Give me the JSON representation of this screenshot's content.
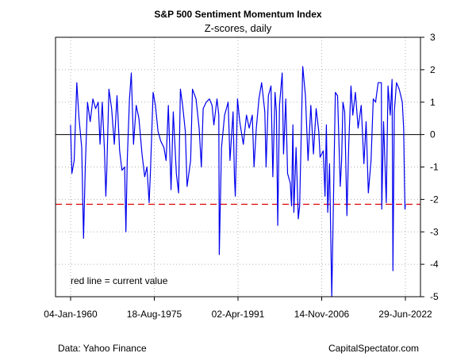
{
  "chart_data": {
    "type": "line",
    "title": "S&P 500 Sentiment Momentum Index",
    "subtitle": "Z-scores, daily",
    "annotation": "red line = current value",
    "xlabel": "",
    "ylabel": "",
    "ylim": [
      -5,
      3
    ],
    "y_ticks": [
      3,
      2,
      1,
      0,
      -1,
      -2,
      -3,
      -4,
      -5
    ],
    "y_axis_side": "right",
    "x_range": [
      "1960-01-04",
      "2022-06-29"
    ],
    "x_ticks": [
      {
        "date": "1960-01-04",
        "label": "04-Jan-1960"
      },
      {
        "date": "1975-08-18",
        "label": "18-Aug-1975"
      },
      {
        "date": "1991-04-02",
        "label": "02-Apr-1991"
      },
      {
        "date": "2006-11-14",
        "label": "14-Nov-2006"
      },
      {
        "date": "2022-06-29",
        "label": "29-Jun-2022"
      }
    ],
    "grid": true,
    "zero_line": true,
    "current_value_line": -2.15,
    "series": [
      {
        "color": "#0000ee",
        "points": [
          [
            "1960-01",
            0.3
          ],
          [
            "1960-04",
            -1.2
          ],
          [
            "1960-09",
            -0.8
          ],
          [
            "1961-03",
            1.6
          ],
          [
            "1961-08",
            0.5
          ],
          [
            "1962-02",
            -0.4
          ],
          [
            "1962-06",
            -3.2
          ],
          [
            "1962-10",
            -1.0
          ],
          [
            "1963-03",
            1.0
          ],
          [
            "1963-09",
            0.4
          ],
          [
            "1964-03",
            1.1
          ],
          [
            "1964-09",
            0.8
          ],
          [
            "1965-03",
            1.0
          ],
          [
            "1965-07",
            -0.3
          ],
          [
            "1965-12",
            1.0
          ],
          [
            "1966-05",
            -0.5
          ],
          [
            "1966-08",
            -1.9
          ],
          [
            "1966-10",
            -1.2
          ],
          [
            "1967-03",
            1.4
          ],
          [
            "1967-09",
            0.8
          ],
          [
            "1968-03",
            -0.3
          ],
          [
            "1968-09",
            1.2
          ],
          [
            "1969-03",
            -0.5
          ],
          [
            "1969-08",
            -1.1
          ],
          [
            "1970-02",
            -1.0
          ],
          [
            "1970-05",
            -3.0
          ],
          [
            "1970-08",
            -0.8
          ],
          [
            "1971-01",
            1.1
          ],
          [
            "1971-05",
            1.9
          ],
          [
            "1971-10",
            -0.3
          ],
          [
            "1972-04",
            0.9
          ],
          [
            "1972-10",
            0.5
          ],
          [
            "1973-05",
            -0.6
          ],
          [
            "1973-11",
            -1.3
          ],
          [
            "1974-04",
            -1.0
          ],
          [
            "1974-09",
            -2.1
          ],
          [
            "1974-12",
            -1.1
          ],
          [
            "1975-06",
            1.3
          ],
          [
            "1975-11",
            0.9
          ],
          [
            "1976-05",
            0.1
          ],
          [
            "1976-11",
            -0.2
          ],
          [
            "1977-06",
            -0.4
          ],
          [
            "1977-11",
            -0.8
          ],
          [
            "1978-04",
            0.9
          ],
          [
            "1978-10",
            -1.7
          ],
          [
            "1979-03",
            0.7
          ],
          [
            "1979-10",
            -1.2
          ],
          [
            "1980-03",
            -1.8
          ],
          [
            "1980-07",
            1.4
          ],
          [
            "1980-12",
            0.9
          ],
          [
            "1981-06",
            0.1
          ],
          [
            "1981-10",
            -1.6
          ],
          [
            "1982-06",
            -0.8
          ],
          [
            "1982-10",
            1.4
          ],
          [
            "1983-06",
            1.1
          ],
          [
            "1984-01",
            0.2
          ],
          [
            "1984-06",
            -1.0
          ],
          [
            "1984-10",
            0.8
          ],
          [
            "1985-05",
            1.0
          ],
          [
            "1985-12",
            1.1
          ],
          [
            "1986-06",
            0.9
          ],
          [
            "1986-10",
            0.3
          ],
          [
            "1987-05",
            1.1
          ],
          [
            "1987-09",
            0.6
          ],
          [
            "1987-10",
            -3.7
          ],
          [
            "1988-03",
            -0.4
          ],
          [
            "1988-10",
            0.6
          ],
          [
            "1989-06",
            1.0
          ],
          [
            "1989-10",
            -0.8
          ],
          [
            "1990-05",
            0.7
          ],
          [
            "1990-08",
            -1.3
          ],
          [
            "1990-10",
            -1.9
          ],
          [
            "1991-03",
            1.1
          ],
          [
            "1991-08",
            0.4
          ],
          [
            "1992-04",
            -0.3
          ],
          [
            "1992-11",
            0.6
          ],
          [
            "1993-05",
            0.2
          ],
          [
            "1993-12",
            0.6
          ],
          [
            "1994-04",
            -1.0
          ],
          [
            "1994-09",
            0.2
          ],
          [
            "1995-03",
            1.1
          ],
          [
            "1995-09",
            1.6
          ],
          [
            "1996-04",
            0.7
          ],
          [
            "1996-07",
            -1.0
          ],
          [
            "1996-12",
            1.2
          ],
          [
            "1997-06",
            1.5
          ],
          [
            "1997-10",
            -1.3
          ],
          [
            "1998-03",
            1.3
          ],
          [
            "1998-06",
            0.7
          ],
          [
            "1998-09",
            -2.8
          ],
          [
            "1999-01",
            0.9
          ],
          [
            "1999-07",
            1.9
          ],
          [
            "1999-10",
            -0.6
          ],
          [
            "2000-03",
            1.1
          ],
          [
            "2000-07",
            -1.2
          ],
          [
            "2001-01",
            -1.5
          ],
          [
            "2001-04",
            -2.2
          ],
          [
            "2001-07",
            0.3
          ],
          [
            "2001-09",
            -2.4
          ],
          [
            "2002-02",
            -0.4
          ],
          [
            "2002-07",
            -2.6
          ],
          [
            "2002-10",
            -2.2
          ],
          [
            "2003-05",
            2.1
          ],
          [
            "2003-11",
            1.2
          ],
          [
            "2004-05",
            -0.8
          ],
          [
            "2004-11",
            0.9
          ],
          [
            "2005-05",
            -0.6
          ],
          [
            "2005-11",
            0.8
          ],
          [
            "2006-05",
            0.1
          ],
          [
            "2006-08",
            -0.7
          ],
          [
            "2007-03",
            -0.5
          ],
          [
            "2007-07",
            -1.9
          ],
          [
            "2007-10",
            0.3
          ],
          [
            "2008-01",
            -2.4
          ],
          [
            "2008-05",
            -0.9
          ],
          [
            "2008-10",
            -5.0
          ],
          [
            "2009-03",
            -1.1
          ],
          [
            "2009-06",
            1.3
          ],
          [
            "2009-11",
            1.2
          ],
          [
            "2010-05",
            -1.6
          ],
          [
            "2010-08",
            -0.8
          ],
          [
            "2010-11",
            1.0
          ],
          [
            "2011-03",
            0.7
          ],
          [
            "2011-08",
            -2.5
          ],
          [
            "2011-12",
            -0.3
          ],
          [
            "2012-05",
            1.5
          ],
          [
            "2012-09",
            0.6
          ],
          [
            "2013-03",
            1.3
          ],
          [
            "2013-09",
            0.2
          ],
          [
            "2014-04",
            0.9
          ],
          [
            "2014-10",
            -0.9
          ],
          [
            "2015-03",
            0.4
          ],
          [
            "2015-08",
            -1.8
          ],
          [
            "2016-02",
            -0.8
          ],
          [
            "2016-07",
            1.1
          ],
          [
            "2016-12",
            1.0
          ],
          [
            "2017-06",
            1.6
          ],
          [
            "2018-01",
            1.6
          ],
          [
            "2018-02",
            -2.3
          ],
          [
            "2018-06",
            0.4
          ],
          [
            "2018-12",
            -2.1
          ],
          [
            "2019-04",
            1.5
          ],
          [
            "2019-09",
            0.6
          ],
          [
            "2020-01",
            1.7
          ],
          [
            "2020-03",
            -4.2
          ],
          [
            "2020-06",
            0.7
          ],
          [
            "2020-11",
            1.6
          ],
          [
            "2021-05",
            1.4
          ],
          [
            "2021-12",
            1.0
          ],
          [
            "2022-03",
            0.2
          ],
          [
            "2022-05",
            -1.6
          ],
          [
            "2022-06",
            -2.3
          ],
          [
            "2022-06-29",
            -2.15
          ]
        ]
      }
    ],
    "reference_line_color": "#dd0000"
  },
  "footer": {
    "source": "Data: Yahoo Finance",
    "credit": "CapitalSpectator.com"
  }
}
